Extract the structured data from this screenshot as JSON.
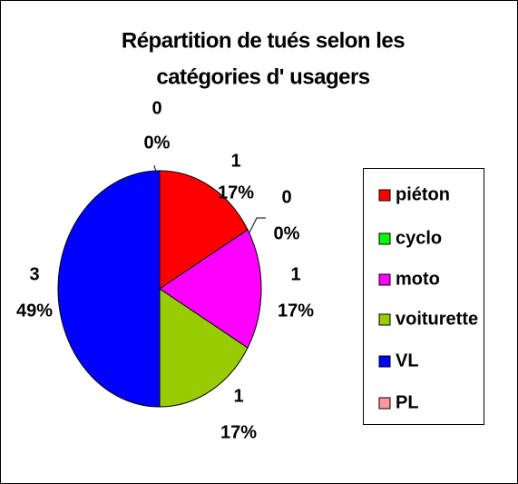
{
  "chart_data": {
    "type": "pie",
    "title_lines": [
      "Répartition de tués selon les",
      "catégories d' usagers"
    ],
    "categories": [
      "piéton",
      "cyclo",
      "moto",
      "voiturette",
      "VL",
      "PL"
    ],
    "values": [
      1,
      0,
      1,
      1,
      3,
      0
    ],
    "percent_values": [
      17,
      0,
      17,
      17,
      49,
      0
    ],
    "percent_labels": [
      "17%",
      "0%",
      "17%",
      "17%",
      "49%",
      "0%"
    ],
    "colors": [
      "#ff0000",
      "#00ff00",
      "#ff00ff",
      "#99cc00",
      "#0000ff",
      "#ff9999"
    ],
    "legend": "right"
  }
}
